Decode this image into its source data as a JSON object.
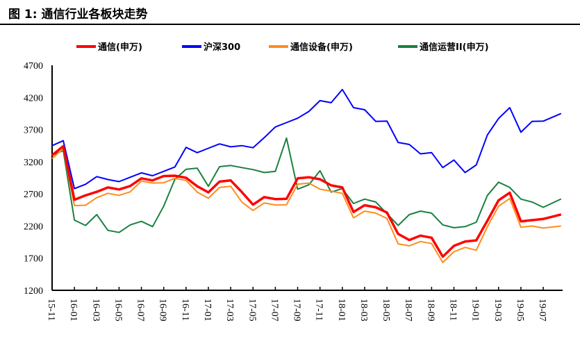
{
  "title": "图 1:  通信行业各板块走势",
  "chart_data": {
    "type": "line",
    "title": "通信行业各板块走势",
    "xlabel": "",
    "ylabel": "",
    "ylim": [
      1200,
      4700
    ],
    "yticks": [
      1200,
      1700,
      2200,
      2700,
      3200,
      3700,
      4200,
      4700
    ],
    "xtick_labels": [
      "15-11",
      "16-01",
      "16-03",
      "16-05",
      "16-07",
      "16-09",
      "16-11",
      "17-01",
      "17-03",
      "17-05",
      "17-07",
      "17-09",
      "17-11",
      "18-01",
      "18-03",
      "18-05",
      "18-07",
      "18-09",
      "18-11",
      "19-01",
      "19-03",
      "19-05",
      "19-07"
    ],
    "x_months_from_2015_11": [
      0,
      1,
      2,
      3,
      4,
      5,
      6,
      7,
      8,
      9,
      10,
      11,
      12,
      13,
      14,
      15,
      16,
      17,
      18,
      19,
      20,
      21,
      22,
      23,
      24,
      25,
      26,
      27,
      28,
      29,
      30,
      31,
      32,
      33,
      34,
      35,
      36,
      37,
      38,
      39,
      40,
      41,
      42,
      43,
      44,
      45.6
    ],
    "legend_position": "top",
    "grid": false,
    "series": [
      {
        "name": "通信(申万)",
        "color": "#ff0000",
        "values": [
          3300,
          3450,
          2600,
          2650,
          2750,
          2800,
          2750,
          2850,
          2950,
          2900,
          2950,
          3000,
          2950,
          2800,
          2750,
          2900,
          2900,
          2700,
          2550,
          2650,
          2600,
          2650,
          2950,
          2950,
          2900,
          2850,
          2800,
          2400,
          2550,
          2500,
          2400,
          2050,
          2000,
          2050,
          2000,
          1750,
          1900,
          1950,
          1950,
          2300,
          2600,
          2700,
          2300,
          2300,
          2300,
          2380
        ]
      },
      {
        "name": "沪深300",
        "color": "#0000ff",
        "values": [
          3450,
          3500,
          2800,
          2850,
          2950,
          2950,
          2900,
          2950,
          3000,
          3000,
          3050,
          3100,
          3450,
          3350,
          3400,
          3450,
          3450,
          3450,
          3400,
          3600,
          3750,
          3800,
          3850,
          4000,
          4150,
          4100,
          4350,
          4050,
          4000,
          3800,
          3850,
          3500,
          3450,
          3350,
          3350,
          3100,
          3200,
          3050,
          3150,
          3600,
          3900,
          4050,
          3650,
          3800,
          3850,
          3950
        ]
      },
      {
        "name": "通信设备(申万)",
        "color": "#ff8c1a",
        "values": [
          3250,
          3400,
          2500,
          2550,
          2650,
          2700,
          2650,
          2750,
          2900,
          2850,
          2900,
          2950,
          2900,
          2700,
          2650,
          2800,
          2800,
          2600,
          2450,
          2550,
          2500,
          2550,
          2850,
          2850,
          2800,
          2750,
          2700,
          2300,
          2450,
          2400,
          2300,
          1950,
          1900,
          1950,
          1900,
          1650,
          1800,
          1850,
          1850,
          2200,
          2500,
          2600,
          2200,
          2200,
          2150,
          2200
        ]
      },
      {
        "name": "通信运营II(申万)",
        "color": "#1a8040",
        "values": [
          3300,
          3400,
          2300,
          2200,
          2350,
          2150,
          2100,
          2200,
          2300,
          2200,
          2500,
          2900,
          3100,
          3100,
          2800,
          3150,
          3150,
          3100,
          3050,
          3050,
          3050,
          3550,
          2800,
          2850,
          3050,
          2700,
          2800,
          2550,
          2600,
          2600,
          2400,
          2200,
          2350,
          2450,
          2400,
          2200,
          2200,
          2200,
          2250,
          2650,
          2900,
          2800,
          2600,
          2600,
          2500,
          2620
        ]
      }
    ]
  }
}
